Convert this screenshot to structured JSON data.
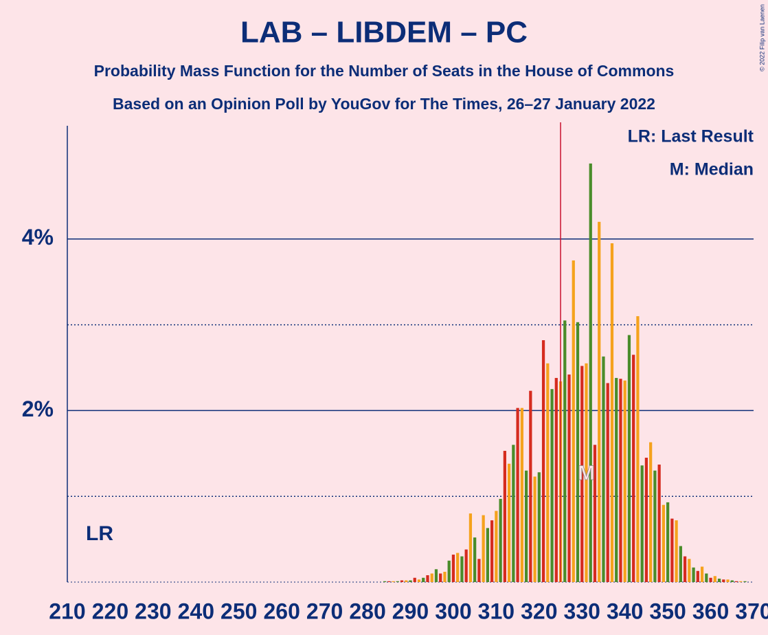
{
  "chart_data": {
    "type": "bar",
    "title": "LAB – LIBDEM – PC",
    "subtitle": "Probability Mass Function for the Number of Seats in the House of Commons",
    "subtitle2": "Based on an Opinion Poll by YouGov for The Times, 26–27 January 2022",
    "copyright": "© 2022 Filip van Laenen",
    "legend": [
      "LR: Last Result",
      "M: Median"
    ],
    "last_result": 325,
    "last_result_label": "LR",
    "median": 331,
    "median_label": "M",
    "colors": [
      "#d52b1e",
      "#f5a21c",
      "#4a8c2a"
    ],
    "x": [
      210,
      211,
      212,
      213,
      214,
      215,
      216,
      217,
      218,
      219,
      220,
      221,
      222,
      223,
      224,
      225,
      226,
      227,
      228,
      229,
      230,
      231,
      232,
      233,
      234,
      235,
      236,
      237,
      238,
      239,
      240,
      241,
      242,
      243,
      244,
      245,
      246,
      247,
      248,
      249,
      250,
      251,
      252,
      253,
      254,
      255,
      256,
      257,
      258,
      259,
      260,
      261,
      262,
      263,
      264,
      265,
      266,
      267,
      268,
      269,
      270,
      271,
      272,
      273,
      274,
      275,
      276,
      277,
      278,
      279,
      280,
      281,
      282,
      283,
      284,
      285,
      286,
      287,
      288,
      289,
      290,
      291,
      292,
      293,
      294,
      295,
      296,
      297,
      298,
      299,
      300,
      301,
      302,
      303,
      304,
      305,
      306,
      307,
      308,
      309,
      310,
      311,
      312,
      313,
      314,
      315,
      316,
      317,
      318,
      319,
      320,
      321,
      322,
      323,
      324,
      325,
      326,
      327,
      328,
      329,
      330,
      331,
      332,
      333,
      334,
      335,
      336,
      337,
      338,
      339,
      340,
      341,
      342,
      343,
      344,
      345,
      346,
      347,
      348,
      349,
      350,
      351,
      352,
      353,
      354,
      355,
      356,
      357,
      358,
      359,
      360,
      361,
      362,
      363,
      364,
      365,
      366,
      367,
      368,
      369,
      370
    ],
    "values": [
      0,
      0,
      0,
      0,
      0,
      0,
      0,
      0,
      0,
      0,
      0,
      0,
      0,
      0,
      0,
      0,
      0,
      0,
      0,
      0,
      0,
      0,
      0,
      0,
      0,
      0,
      0,
      0,
      0,
      0,
      0,
      0,
      0,
      0,
      0,
      0,
      0,
      0,
      0,
      0,
      0,
      0,
      0,
      0,
      0,
      0,
      0,
      0,
      0,
      0,
      0,
      0,
      0,
      0,
      0,
      0,
      0,
      0,
      0,
      0,
      0,
      0,
      0,
      0,
      0,
      0,
      0,
      0,
      0,
      0,
      0,
      0,
      0,
      0,
      0.01,
      0.01,
      0.01,
      0.01,
      0.02,
      0.02,
      0.02,
      0.05,
      0.03,
      0.05,
      0.08,
      0.1,
      0.15,
      0.1,
      0.12,
      0.25,
      0.32,
      0.34,
      0.3,
      0.38,
      0.8,
      0.52,
      0.27,
      0.78,
      0.63,
      0.72,
      0.83,
      0.97,
      1.53,
      1.38,
      1.6,
      2.03,
      2.03,
      1.3,
      2.23,
      1.23,
      1.28,
      2.82,
      2.55,
      2.25,
      2.38,
      2.34,
      3.05,
      2.42,
      3.75,
      3.03,
      2.52,
      2.55,
      4.88,
      1.6,
      4.2,
      2.63,
      2.32,
      3.95,
      2.38,
      2.37,
      2.35,
      2.88,
      2.65,
      3.1,
      1.36,
      1.45,
      1.63,
      1.3,
      1.37,
      0.9,
      0.93,
      0.74,
      0.72,
      0.42,
      0.3,
      0.27,
      0.17,
      0.13,
      0.18,
      0.1,
      0.05,
      0.07,
      0.04,
      0.03,
      0.03,
      0.02,
      0.01,
      0.01,
      0.01,
      0,
      0
    ],
    "xlim": [
      210,
      370
    ],
    "xticks": [
      210,
      220,
      230,
      240,
      250,
      260,
      270,
      280,
      290,
      300,
      310,
      320,
      330,
      340,
      350,
      360,
      370
    ],
    "ylim": [
      0,
      5.32
    ],
    "yticks": [
      {
        "value": 2,
        "label": "2%"
      },
      {
        "value": 4,
        "label": "4%"
      }
    ],
    "minor_yticks": [
      1,
      3
    ]
  }
}
